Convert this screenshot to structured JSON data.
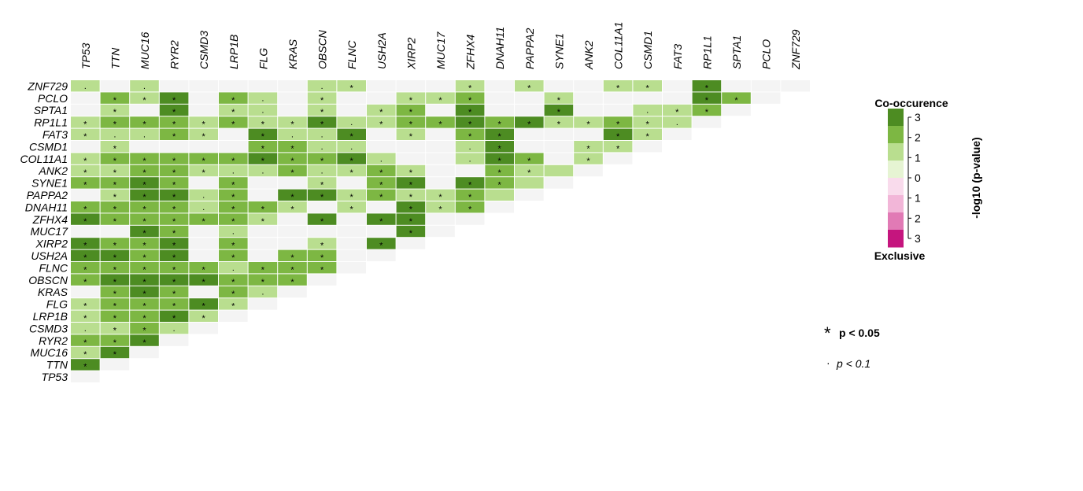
{
  "chart_data": {
    "type": "heatmap",
    "genes": [
      "TP53",
      "TTN",
      "MUC16",
      "RYR2",
      "CSMD3",
      "LRP1B",
      "FLG",
      "KRAS",
      "OBSCN",
      "FLNC",
      "USH2A",
      "XIRP2",
      "MUC17",
      "ZFHX4",
      "DNAH11",
      "PAPPA2",
      "SYNE1",
      "ANK2",
      "COL11A1",
      "CSMD1",
      "FAT3",
      "RP1L1",
      "SPTA1",
      "PCLO",
      "ZNF729"
    ],
    "value_scale": "-log10 (p-value)",
    "value_range": [
      -3,
      3
    ],
    "cells": {
      "ZNF729": [
        "1.5.",
        "",
        "1.5.",
        "",
        "",
        "",
        "",
        "",
        "1.5.",
        "1.5*",
        "",
        "",
        "",
        "1.5*",
        "",
        "1.5*",
        "",
        "",
        "1.5*",
        "1.5*",
        "",
        "3*",
        "",
        "",
        ""
      ],
      "PCLO": [
        "",
        "2.5*",
        "1.5*",
        "3*",
        "",
        "2.5*",
        "1.5.",
        "",
        "1.5*",
        "",
        "",
        "1.5*",
        "1.5*",
        "2.5*",
        "",
        "",
        "1.5*",
        "",
        "",
        "",
        "",
        "3*",
        "2.5*",
        ""
      ],
      "SPTA1": [
        "",
        "1.5*",
        "",
        "3*",
        "",
        "1.5*",
        "1.5.",
        "",
        "1.5*",
        "",
        "1.5*",
        "2.5*",
        "",
        "3*",
        "",
        "",
        "3*",
        "",
        "",
        "1.5.",
        "1.5*",
        "2.5*",
        ""
      ],
      "RP1L1": [
        "1.5*",
        "2.5*",
        "2.5*",
        "2.5*",
        "1.5*",
        "2.5*",
        "1.5*",
        "1.5*",
        "3*",
        "1.5.",
        "1.5*",
        "2.5*",
        "2.5*",
        "3*",
        "2.5*",
        "3*",
        "1.5*",
        "1.5*",
        "2.5*",
        "1.5*",
        "1.5."
      ],
      "FAT3": [
        "1.5*",
        "1.5.",
        "1.5.",
        "2.5*",
        "1.5*",
        "",
        "3*",
        "1.5.",
        "1.5.",
        "3*",
        "",
        "1.5*",
        "",
        "2.5*",
        "3*",
        "",
        "",
        "",
        "3*",
        "1.5*"
      ],
      "CSMD1": [
        "",
        "1.5*",
        "",
        "",
        "",
        "",
        "2.5*",
        "2.5*",
        "1.5.",
        "1.5.",
        "",
        "",
        "",
        "1.5.",
        "3*",
        "",
        "",
        "1.5*",
        "1.5*"
      ],
      "COL11A1": [
        "1.5*",
        "2.5*",
        "2.5*",
        "2.5*",
        "2.5*",
        "2.5*",
        "3*",
        "2.5*",
        "2.5*",
        "3*",
        "1.5.",
        "",
        "",
        "1.5.",
        "3*",
        "2.5*",
        "",
        "1.5*"
      ],
      "ANK2": [
        "1.5*",
        "1.5*",
        "2.5*",
        "2.5*",
        "1.5*",
        "1.5.",
        "1.5.",
        "2.5*",
        "1.5.",
        "1.5*",
        "2.5*",
        "1.5*",
        "",
        "",
        "2.5*",
        "1.5*",
        "1.5"
      ],
      "SYNE1": [
        "2.5*",
        "2.5*",
        "3*",
        "2.5*",
        "",
        "2.5*",
        "",
        "",
        "1.5*",
        "",
        "2.5*",
        "3*",
        "",
        "3*",
        "2.5*",
        "1.5"
      ],
      "PAPPA2": [
        "",
        "1.5*",
        "3*",
        "3*",
        "1.5.",
        "2.5*",
        "",
        "3*",
        "3*",
        "1.5*",
        "2.5*",
        "1.5*",
        "1.5*",
        "2.5*",
        "1.5"
      ],
      "DNAH11": [
        "2.5*",
        "2.5*",
        "2.5*",
        "2.5*",
        "1.5.",
        "2.5*",
        "2.5*",
        "1.5*",
        "",
        "1.5*",
        "",
        "3*",
        "1.5*",
        "2.5*"
      ],
      "ZFHX4": [
        "3*",
        "2.5*",
        "2.5*",
        "2.5*",
        "2.5*",
        "2.5*",
        "1.5*",
        "",
        "3*",
        "",
        "3*",
        "3*",
        ""
      ],
      "MUC17": [
        "",
        "",
        "3*",
        "2.5*",
        "",
        "1.5.",
        "",
        "",
        "",
        "",
        "",
        "3*"
      ],
      "XIRP2": [
        "3*",
        "2.5*",
        "2.5*",
        "3*",
        "",
        "2.5*",
        "",
        "",
        "1.5*",
        "",
        "3*"
      ],
      "USH2A": [
        "3*",
        "3*",
        "2.5*",
        "3*",
        "",
        "2.5*",
        "",
        "2.5*",
        "2.5*",
        ""
      ],
      "FLNC": [
        "2.5*",
        "2.5*",
        "2.5*",
        "2.5*",
        "2.5*",
        "1.5.",
        "2.5*",
        "2.5*",
        "2.5*"
      ],
      "OBSCN": [
        "2.5*",
        "3*",
        "3*",
        "3*",
        "3*",
        "2.5*",
        "2.5*",
        "2.5*"
      ],
      "KRAS": [
        "",
        "2.5*",
        "3*",
        "2.5*",
        "",
        "2.5*",
        "1.5."
      ],
      "FLG": [
        "1.5*",
        "2.5*",
        "2.5*",
        "2.5*",
        "3*",
        "1.5*"
      ],
      "LRP1B": [
        "1.5*",
        "2.5*",
        "2.5*",
        "3*",
        "1.5*"
      ],
      "CSMD3": [
        "1.5.",
        "1.5*",
        "2.5*",
        "1.5."
      ],
      "RYR2": [
        "2.5*",
        "2.5*",
        "3*"
      ],
      "MUC16": [
        "1.5*",
        "3*"
      ],
      "TTN": [
        "3*"
      ],
      "TP53": [
        ""
      ]
    }
  },
  "legend": {
    "top_label": "Co-occurence",
    "bottom_label": "Exclusive",
    "axis_title": "-log10 (p-value)",
    "ticks": [
      "3",
      "2",
      "1",
      "0",
      "1",
      "2",
      "3"
    ],
    "colors": [
      "#4d8c22",
      "#7db743",
      "#b9de8f",
      "#e6f4d3",
      "#f9dbec",
      "#f2b6d8",
      "#e17ab5",
      "#c5157e"
    ]
  },
  "significance": {
    "p005_symbol": "*",
    "p005_label": "p < 0.05",
    "p01_symbol": "·",
    "p01_label": "p < 0.1"
  },
  "colors": {
    "empty_cell": "#f4f4f4",
    "level_3": "#4d8c22",
    "level_2": "#7db743",
    "level_1": "#b9de8f"
  }
}
